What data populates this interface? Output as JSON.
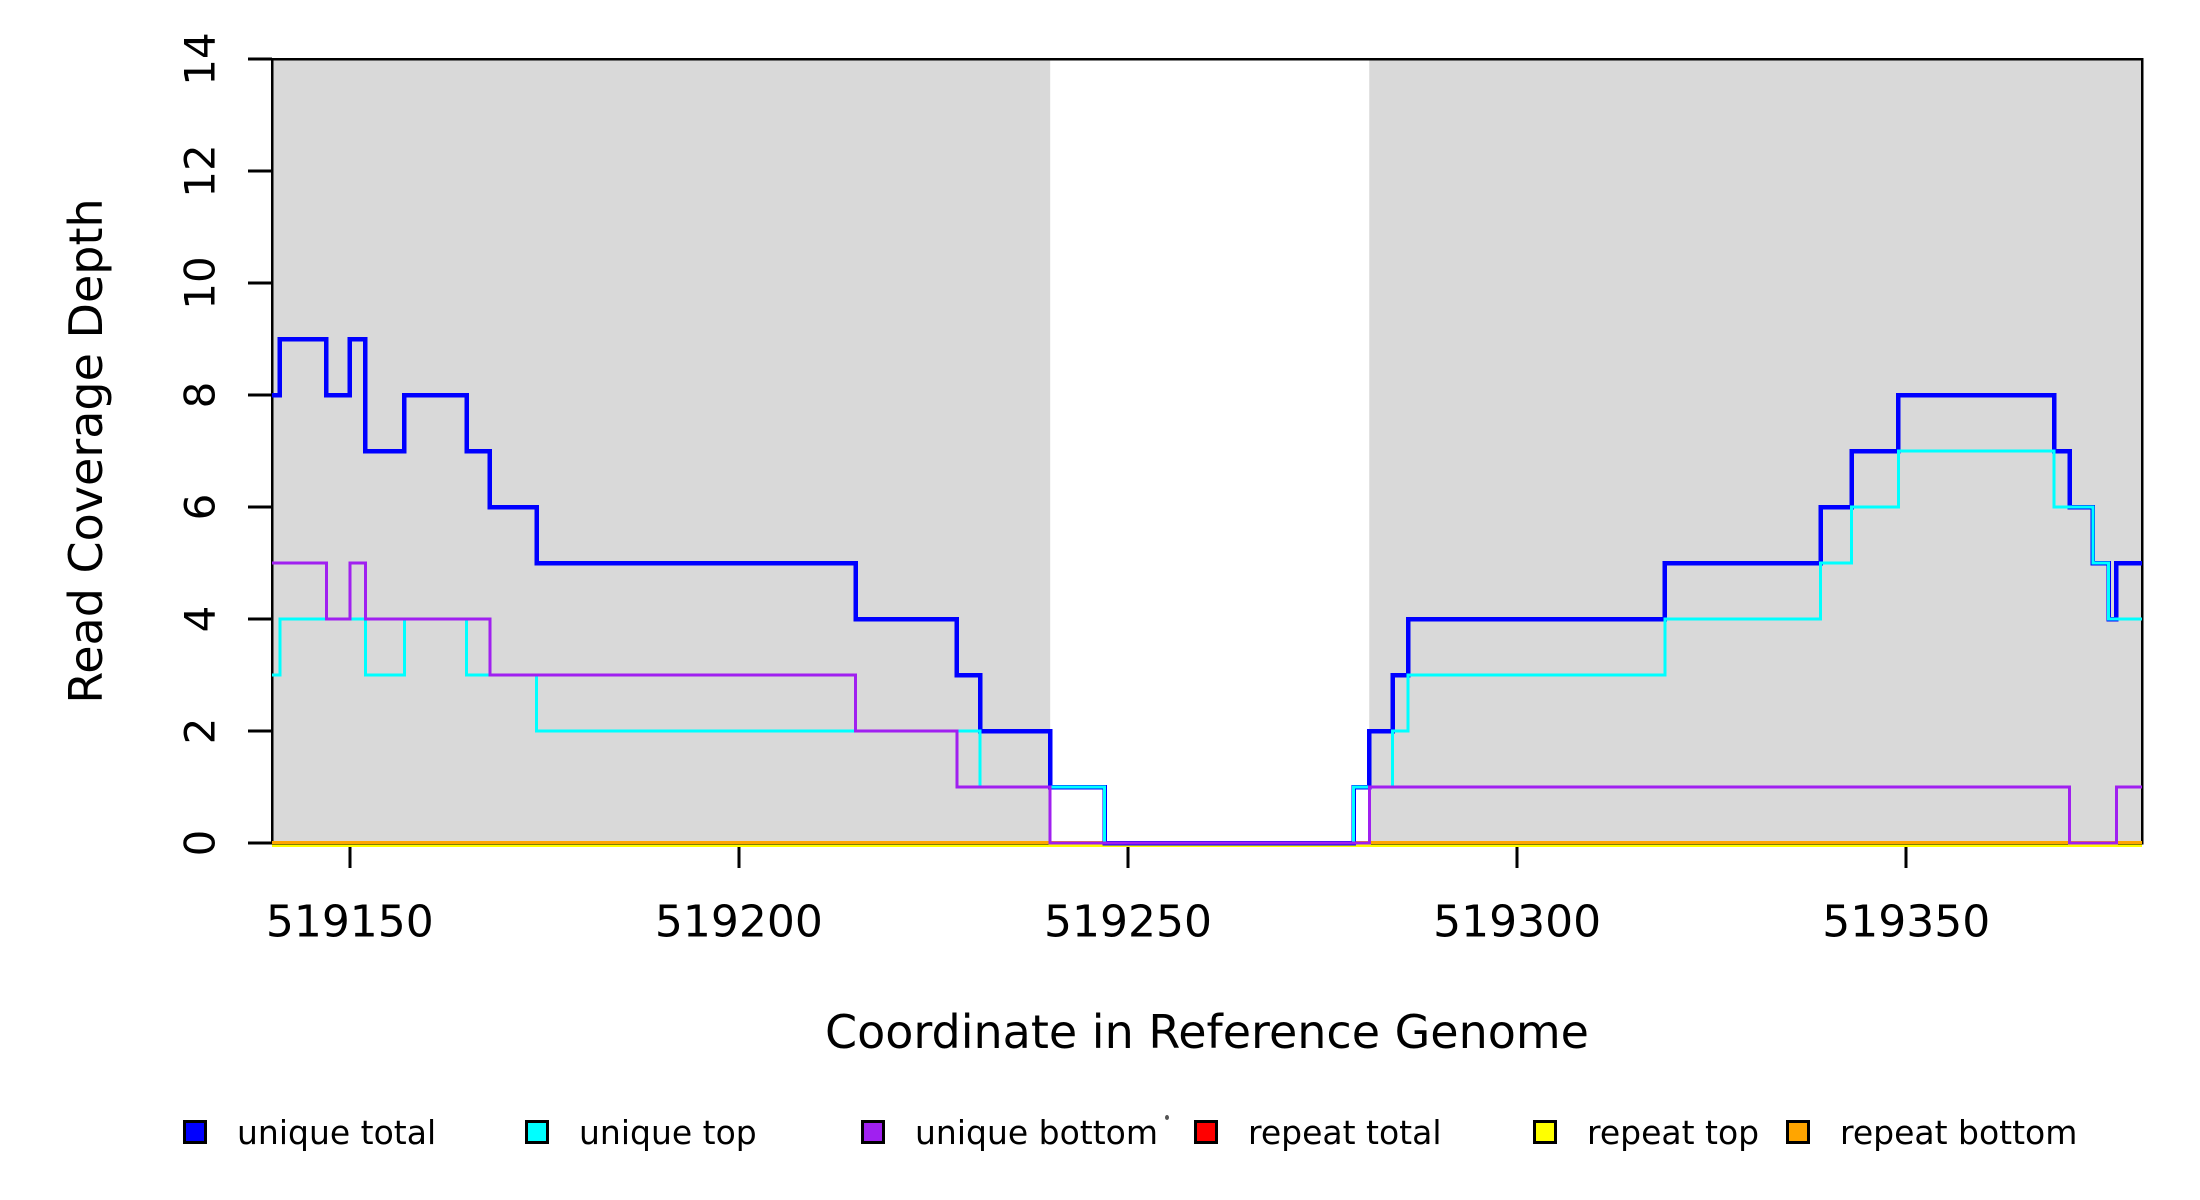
{
  "figure": {
    "background": "#FFFFFF",
    "frame_color": "#000000",
    "shaded_band_color": "#D9D9D9",
    "xlabel": "Coordinate in Reference Genome",
    "ylabel": "Read Coverage Depth"
  },
  "chart_data": {
    "type": "line",
    "subtype": "step-coverage-plot",
    "title": "",
    "xlabel": "Coordinate in Reference Genome",
    "ylabel": "Read Coverage Depth",
    "xlim": [
      519140,
      519380.3
    ],
    "ylim": [
      0,
      14
    ],
    "x_ticks": [
      519150,
      519200,
      519250,
      519300,
      519350
    ],
    "y_ticks": [
      0,
      2,
      4,
      6,
      8,
      10,
      12,
      14
    ],
    "grid": false,
    "legend_position": "bottom",
    "shaded_regions": [
      {
        "x0": 519140,
        "x1": 519240,
        "color": "#D9D9D9"
      },
      {
        "x0": 519281,
        "x1": 519380.3,
        "color": "#D9D9D9"
      }
    ],
    "series": [
      {
        "name": "unique total",
        "color": "#0000FF",
        "breakpoints": [
          [
            519140,
            8
          ],
          [
            519141,
            9
          ],
          [
            519147,
            8
          ],
          [
            519150,
            9
          ],
          [
            519152,
            7
          ],
          [
            519157,
            8
          ],
          [
            519165,
            7
          ],
          [
            519168,
            6
          ],
          [
            519174,
            5
          ],
          [
            519215,
            4
          ],
          [
            519228,
            3
          ],
          [
            519231,
            2
          ],
          [
            519240,
            1
          ],
          [
            519247,
            0
          ],
          [
            519279,
            1
          ],
          [
            519281,
            2
          ],
          [
            519284,
            3
          ],
          [
            519286,
            4
          ],
          [
            519319,
            5
          ],
          [
            519339,
            6
          ],
          [
            519343,
            7
          ],
          [
            519349,
            8
          ],
          [
            519369,
            7
          ],
          [
            519371,
            6
          ],
          [
            519374,
            5
          ],
          [
            519376,
            4
          ],
          [
            519377,
            5
          ]
        ]
      },
      {
        "name": "unique top",
        "color": "#00FFFF",
        "breakpoints": [
          [
            519140,
            3
          ],
          [
            519141,
            4
          ],
          [
            519152,
            3
          ],
          [
            519157,
            4
          ],
          [
            519165,
            3
          ],
          [
            519174,
            2
          ],
          [
            519231,
            1
          ],
          [
            519247,
            0
          ],
          [
            519279,
            1
          ],
          [
            519284,
            2
          ],
          [
            519286,
            3
          ],
          [
            519319,
            4
          ],
          [
            519339,
            5
          ],
          [
            519343,
            6
          ],
          [
            519349,
            7
          ],
          [
            519369,
            6
          ],
          [
            519374,
            5
          ],
          [
            519376,
            4
          ]
        ]
      },
      {
        "name": "unique bottom",
        "color": "#A020F0",
        "breakpoints": [
          [
            519140,
            5
          ],
          [
            519147,
            4
          ],
          [
            519150,
            5
          ],
          [
            519152,
            4
          ],
          [
            519168,
            3
          ],
          [
            519215,
            2
          ],
          [
            519228,
            1
          ],
          [
            519240,
            0
          ],
          [
            519281,
            1
          ],
          [
            519371,
            0
          ],
          [
            519377,
            1
          ]
        ]
      },
      {
        "name": "repeat total",
        "color": "#FF0000",
        "breakpoints": [
          [
            519140,
            0
          ]
        ]
      },
      {
        "name": "repeat top",
        "color": "#FFFF00",
        "breakpoints": [
          [
            519140,
            0
          ]
        ]
      },
      {
        "name": "repeat bottom",
        "color": "#FFA500",
        "breakpoints": [
          [
            519140,
            0
          ]
        ]
      }
    ],
    "legend": {
      "entries": [
        {
          "label": "unique total",
          "color": "#0000FF"
        },
        {
          "label": "unique top",
          "color": "#00FFFF"
        },
        {
          "label": "unique bottom",
          "color": "#A020F0"
        },
        {
          "label": "repeat total",
          "color": "#FF0000"
        },
        {
          "label": "repeat top",
          "color": "#FFFF00"
        },
        {
          "label": "repeat bottom",
          "color": "#FFA500"
        }
      ]
    }
  }
}
